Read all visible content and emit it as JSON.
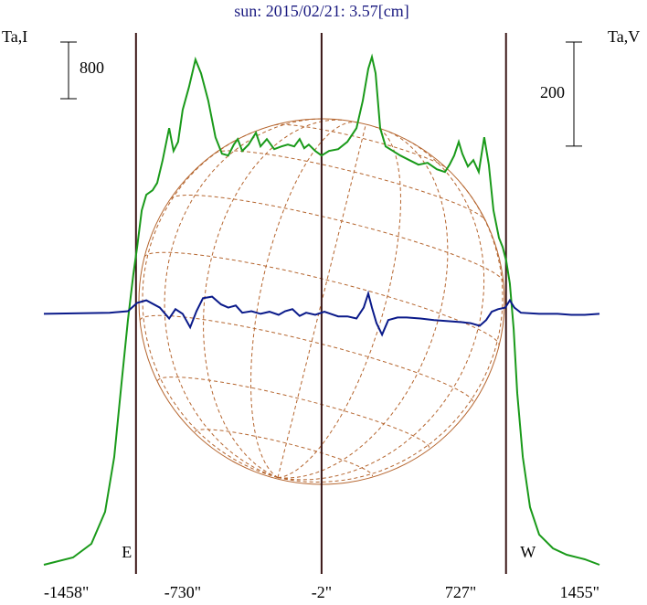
{
  "chart_data": {
    "type": "line",
    "title": "sun: 2015/02/21: 3.57[cm]",
    "y_label": "Ta,I",
    "y2_label": "Ta,V",
    "xlim": [
      -1458,
      1455
    ],
    "xticks": [
      {
        "value": -1458,
        "label": "-1458\""
      },
      {
        "value": -730,
        "label": "-730\""
      },
      {
        "value": -2,
        "label": "-2\""
      },
      {
        "value": 727,
        "label": "727\""
      },
      {
        "value": 1455,
        "label": "1455\""
      }
    ],
    "ylim": [
      0,
      7640
    ],
    "y2lim": [
      -500,
      540
    ],
    "scale_bars": [
      {
        "axis": "y",
        "value": 800
      },
      {
        "axis": "y2",
        "value": 200
      }
    ],
    "markers": [
      {
        "x": -975,
        "label": "E"
      },
      {
        "x": -2
      },
      {
        "x": 965,
        "label": "W"
      }
    ],
    "series": [
      {
        "color": "#1a9a1a",
        "axis": "y",
        "x": [
          -1458,
          -1305,
          -1209,
          -1137,
          -1089,
          -1051,
          -1017,
          -989,
          -969,
          -945,
          -921,
          -888,
          -864,
          -835,
          -801,
          -778,
          -754,
          -730,
          -697,
          -663,
          -634,
          -596,
          -558,
          -524,
          -491,
          -462,
          -442,
          -418,
          -385,
          -346,
          -322,
          -289,
          -250,
          -212,
          -179,
          -145,
          -117,
          -93,
          -69,
          -35,
          -2,
          37,
          85,
          133,
          181,
          214,
          243,
          262,
          281,
          305,
          334,
          372,
          411,
          458,
          506,
          554,
          602,
          645,
          669,
          693,
          717,
          736,
          765,
          794,
          822,
          851,
          875,
          899,
          928,
          947,
          966,
          985,
          1005,
          1024,
          1053,
          1091,
          1139,
          1211,
          1283,
          1378,
          1455
        ],
        "values": [
          129,
          232,
          426,
          877,
          1651,
          2683,
          3586,
          4231,
          4618,
          5134,
          5354,
          5418,
          5521,
          5844,
          6295,
          5973,
          6102,
          6553,
          6876,
          7263,
          7069,
          6682,
          6166,
          5934,
          5908,
          6063,
          6140,
          5973,
          6063,
          6231,
          6037,
          6140,
          5999,
          6037,
          6063,
          6037,
          6140,
          6011,
          6063,
          5973,
          5908,
          5973,
          5999,
          6102,
          6295,
          6682,
          7134,
          7301,
          7069,
          6295,
          6037,
          5973,
          5908,
          5844,
          5779,
          5805,
          5715,
          5676,
          5779,
          5908,
          6102,
          5934,
          5753,
          5844,
          5676,
          6166,
          5779,
          5134,
          4747,
          4618,
          4425,
          4102,
          3457,
          2554,
          1651,
          942,
          555,
          361,
          271,
          206,
          129
        ]
      },
      {
        "color": "#0a1a8a",
        "axis": "y2",
        "x": [
          -1458,
          -1113,
          -1017,
          -969,
          -921,
          -850,
          -801,
          -768,
          -730,
          -691,
          -658,
          -624,
          -576,
          -529,
          -491,
          -452,
          -418,
          -370,
          -322,
          -275,
          -227,
          -193,
          -155,
          -117,
          -83,
          -35,
          13,
          46,
          85,
          133,
          181,
          219,
          243,
          262,
          286,
          315,
          348,
          396,
          444,
          516,
          588,
          660,
          732,
          779,
          827,
          861,
          890,
          923,
          961,
          985,
          1009,
          1043,
          1139,
          1235,
          1307,
          1378,
          1455
        ],
        "values": [
          0,
          2,
          5,
          21,
          26,
          12,
          -9,
          9,
          0,
          -26,
          5,
          30,
          33,
          18,
          12,
          16,
          2,
          5,
          0,
          4,
          -2,
          5,
          9,
          -4,
          2,
          -2,
          4,
          0,
          -5,
          -5,
          -9,
          12,
          39,
          12,
          -18,
          -40,
          -12,
          -7,
          -7,
          -9,
          -12,
          -14,
          -16,
          -18,
          -23,
          -12,
          4,
          9,
          12,
          26,
          12,
          2,
          0,
          0,
          -2,
          -2,
          0
        ]
      }
    ]
  }
}
